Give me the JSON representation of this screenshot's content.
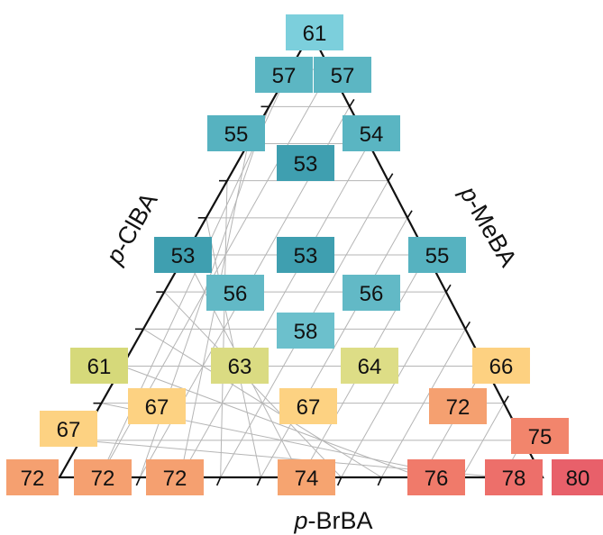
{
  "chart_data": {
    "type": "ternary-heatmap",
    "axes": {
      "bottom": {
        "prefix": "p",
        "name": "-BrBA"
      },
      "left": {
        "prefix": "p",
        "name": "-ClBA"
      },
      "right": {
        "prefix": "p",
        "name": "-MeBA"
      }
    },
    "grid": true,
    "points": [
      {
        "a": 0,
        "b": 12,
        "value": 61
      },
      {
        "a": 1,
        "b": 11,
        "value": 57
      },
      {
        "a": 1,
        "b": 10,
        "value": 57
      },
      {
        "a": 2,
        "b": 10,
        "value": 55
      },
      {
        "a": 2,
        "b": 8,
        "value": 54
      },
      {
        "a": 3,
        "b": 8,
        "value": 53
      },
      {
        "a": 3,
        "b": 5,
        "value": 53
      },
      {
        "a": 4,
        "b": 5,
        "value": 53
      },
      {
        "a": 3,
        "b": 4,
        "value": 55
      },
      {
        "a": 5,
        "b": 6,
        "value": 56
      },
      {
        "a": 4,
        "b": 3,
        "value": 56
      },
      {
        "a": 5,
        "b": 3,
        "value": 58
      },
      {
        "a": 7,
        "b": 5,
        "value": 61
      },
      {
        "a": 7,
        "b": 3,
        "value": 63
      },
      {
        "a": 6,
        "b": 2,
        "value": 64
      },
      {
        "a": 7,
        "b": 0,
        "value": 66
      },
      {
        "a": 8,
        "b": 3,
        "value": 67
      },
      {
        "a": 7,
        "b": 2,
        "value": 67
      },
      {
        "a": 8,
        "b": 0,
        "value": 72
      },
      {
        "a": 10,
        "b": 2,
        "value": 67
      },
      {
        "a": 9,
        "b": 0,
        "value": 75
      },
      {
        "a": 12,
        "b": 0,
        "value": 72
      },
      {
        "a": 11,
        "b": 0,
        "value": 72
      },
      {
        "a": 10,
        "b": 0,
        "value": 72
      },
      {
        "a": 9,
        "b": 0,
        "value": 74
      },
      {
        "a": 10,
        "b": 0,
        "value": 76
      },
      {
        "a": 11,
        "b": 0,
        "value": 78
      },
      {
        "a": 12,
        "b": 0,
        "value": 80
      }
    ],
    "colors": {
      "53": "#3f9fb0",
      "54": "#5ab5c2",
      "55": "#56b2c0",
      "56": "#62b9c6",
      "57": "#5cb6c3",
      "58": "#6cc0cc",
      "61": "#d6d97a",
      "61_top": "#7ccfdc",
      "63": "#dadb82",
      "64": "#dddd86",
      "66": "#fdd181",
      "67": "#fdd282",
      "72": "#f5a070",
      "74": "#f6a470",
      "75": "#f2856c",
      "76": "#f07a6a",
      "78": "#ed6f6a",
      "80": "#e8606a"
    }
  }
}
